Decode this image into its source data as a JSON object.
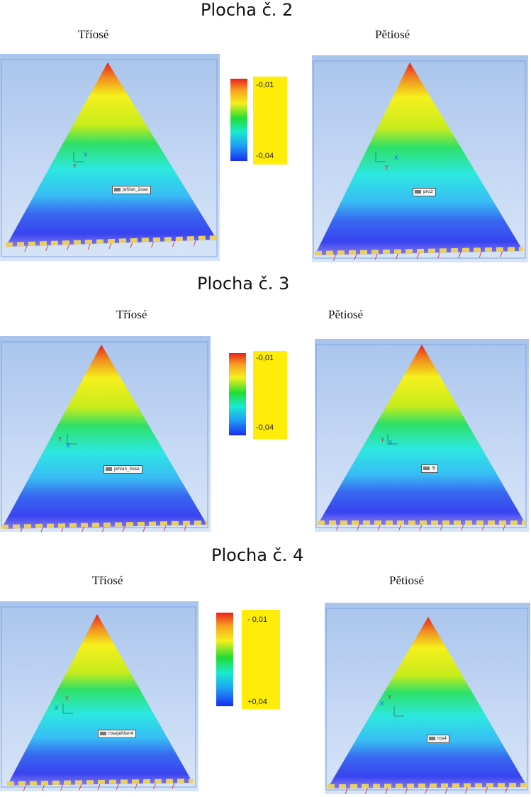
{
  "sections": [
    {
      "title": "Plocha č. 2",
      "left_label": "Tříosé",
      "right_label": "Pětiosé",
      "legend": {
        "max": "-0,01",
        "min": "-0,04"
      },
      "left_tag": "jehlan_2ose",
      "right_tag": "pro2"
    },
    {
      "title": "Plocha č. 3",
      "left_label": "Tříosé",
      "right_label": "Pětiosé",
      "legend": {
        "max": "-0,01",
        "min": "-0,04"
      },
      "left_tag": "jehlan_3ose",
      "right_tag": "3i"
    },
    {
      "title": "Plocha č. 4",
      "left_label": "Tříosé",
      "right_label": "Pětiosé",
      "legend": {
        "max": "- 0,01",
        "min": "+0,04"
      },
      "left_tag": "rosajehlan4",
      "right_tag": "ros4"
    }
  ],
  "axis_labels": {
    "x": "X",
    "y": "Y"
  },
  "colors": {
    "background_top": "#a9c4ec",
    "background_bottom": "#d7e4f7",
    "legend_box": "#ffec08",
    "deviation_top": "#e8201c",
    "deviation_bottom": "#3844f0"
  }
}
